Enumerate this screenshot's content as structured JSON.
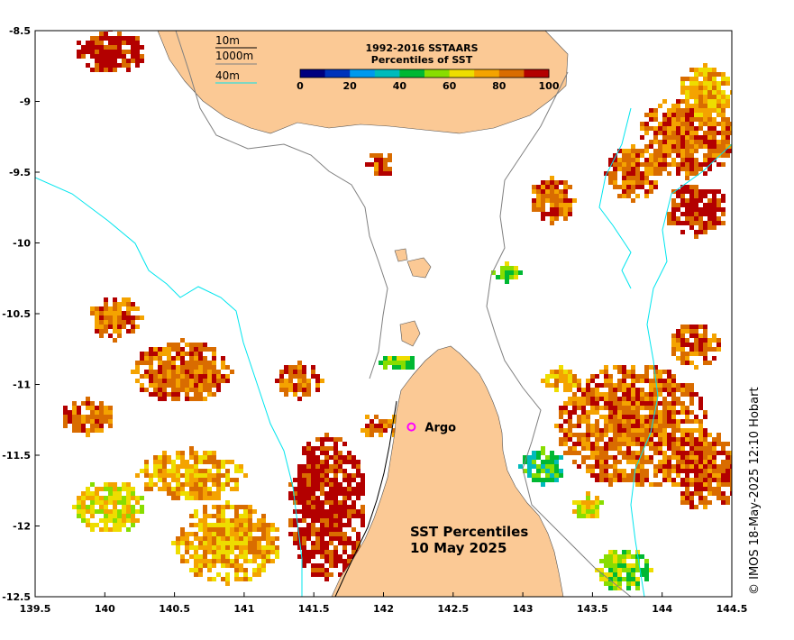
{
  "map": {
    "lon_ticks": [
      "139.5",
      "140",
      "140.5",
      "141",
      "141.5",
      "142",
      "142.5",
      "143",
      "143.5",
      "144",
      "144.5"
    ],
    "lat_ticks": [
      "-8.5",
      "-9",
      "-9.5",
      "-10",
      "-10.5",
      "-11",
      "-11.5",
      "-12",
      "-12.5"
    ],
    "lon_range": [
      139.5,
      144.5
    ],
    "lat_range": [
      -12.5,
      -8.5
    ],
    "land_color": "#fbc995",
    "isobath_color_10m": "#000000",
    "isobath_color_1000m": "#7f7f7f",
    "isobath_color_40m": "#00e5ee"
  },
  "legend": {
    "title_line1": "1992-2016 SSTAARS",
    "title_line2": "Percentiles of SST",
    "tick_labels": [
      "0",
      "20",
      "40",
      "60",
      "80",
      "100"
    ],
    "colors": [
      "#00007f",
      "#0033bb",
      "#0099ee",
      "#00bbbb",
      "#00b833",
      "#88dd00",
      "#eedd00",
      "#f4a300",
      "#d96c00",
      "#b30000"
    ]
  },
  "isobaths": {
    "label_10m": "10m",
    "label_1000m": "1000m",
    "label_40m": "40m"
  },
  "annotations": {
    "title_line1": "SST Percentiles",
    "title_line2": "10 May 2025",
    "argo_label": "Argo",
    "argo_position": {
      "lon": 142.2,
      "lat": -11.3
    },
    "argo_color": "#ff00ff"
  },
  "credit": "© IMOS 18-May-2025 12:10 Hobart"
}
